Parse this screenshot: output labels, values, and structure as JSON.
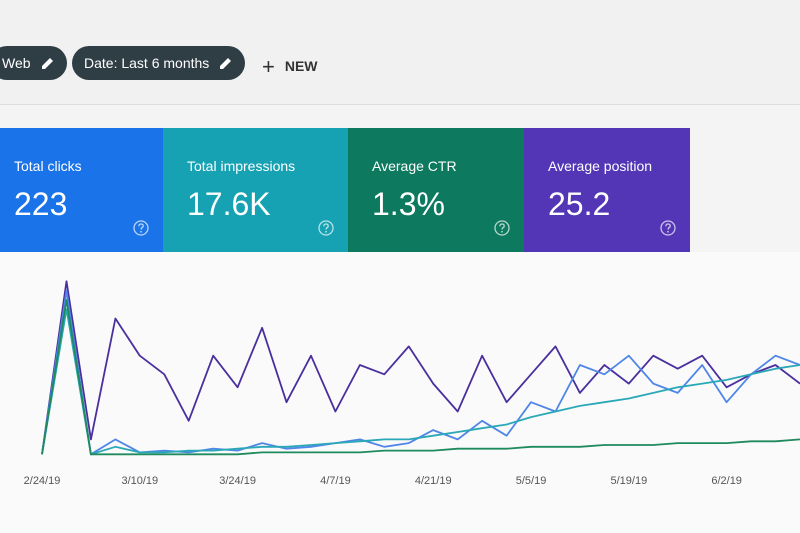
{
  "toolbar": {
    "filters": [
      "Web",
      "Date: Last 6 months"
    ],
    "new_button": "NEW"
  },
  "metrics": [
    {
      "label": "Total clicks",
      "value": "223",
      "color": "#1a73e8"
    },
    {
      "label": "Total impressions",
      "value": "17.6K",
      "color": "#16a2b3"
    },
    {
      "label": "Average CTR",
      "value": "1.3%",
      "color": "#0d7a5f"
    },
    {
      "label": "Average position",
      "value": "25.2",
      "color": "#5236b6"
    }
  ],
  "chart_data": {
    "type": "line",
    "categories": [
      "2/24/19",
      null,
      null,
      null,
      "3/10/19",
      null,
      null,
      null,
      "3/24/19",
      null,
      null,
      null,
      "4/7/19",
      null,
      null,
      null,
      "4/21/19",
      null,
      null,
      null,
      "5/5/19",
      null,
      null,
      null,
      "5/19/19",
      null,
      null,
      null,
      "6/2/19",
      null,
      null,
      null
    ],
    "ylim": [
      0,
      100
    ],
    "series": [
      {
        "color": "#4a2f9e",
        "values": [
          2,
          95,
          10,
          75,
          55,
          45,
          20,
          55,
          38,
          70,
          30,
          55,
          25,
          50,
          45,
          60,
          40,
          25,
          55,
          30,
          45,
          60,
          35,
          50,
          40,
          55,
          48,
          55,
          38,
          45,
          50,
          40
        ]
      },
      {
        "color": "#4f86e8",
        "values": [
          2,
          90,
          2,
          10,
          3,
          4,
          3,
          5,
          4,
          8,
          5,
          6,
          8,
          10,
          6,
          8,
          15,
          10,
          20,
          12,
          30,
          25,
          50,
          45,
          55,
          40,
          35,
          50,
          30,
          45,
          55,
          50
        ]
      },
      {
        "color": "#2aa8b8",
        "values": [
          2,
          80,
          2,
          6,
          3,
          3,
          4,
          4,
          5,
          6,
          6,
          7,
          8,
          9,
          10,
          10,
          12,
          14,
          16,
          18,
          22,
          25,
          28,
          30,
          32,
          35,
          38,
          40,
          42,
          45,
          48,
          50
        ]
      },
      {
        "color": "#1e8a5e",
        "values": [
          2,
          85,
          2,
          2,
          2,
          2,
          2,
          2,
          2,
          3,
          3,
          3,
          3,
          3,
          4,
          4,
          4,
          5,
          5,
          5,
          6,
          6,
          6,
          7,
          7,
          7,
          8,
          8,
          8,
          9,
          9,
          10
        ]
      }
    ]
  }
}
